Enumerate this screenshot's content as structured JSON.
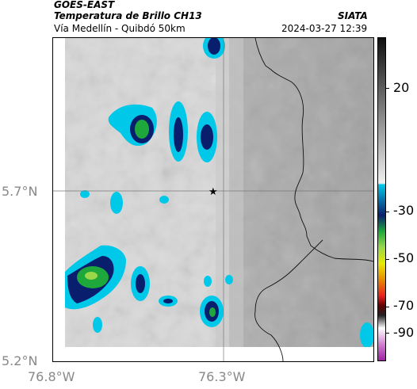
{
  "header": {
    "satellite": "GOES-EAST",
    "product": "Temperatura de Brillo CH13",
    "region": "Vía Medellín - Quibdó 50km",
    "org": "SIATA",
    "datetime": "2024-03-27 12:39"
  },
  "map": {
    "lat_labels": [
      "5.7°N",
      "5.2°N"
    ],
    "lon_labels": [
      "76.8°W",
      "76.3°W"
    ],
    "marker": "star-icon"
  },
  "colorbar": {
    "labels": [
      "20",
      "-30",
      "-50",
      "-70",
      "-90"
    ]
  },
  "colors": {
    "cold_cyan": "#00c8e8",
    "deep_blue": "#0a1e6e",
    "green": "#1ea83c",
    "yellow": "#e8e800",
    "red": "#e82020",
    "magenta": "#c040c0"
  }
}
